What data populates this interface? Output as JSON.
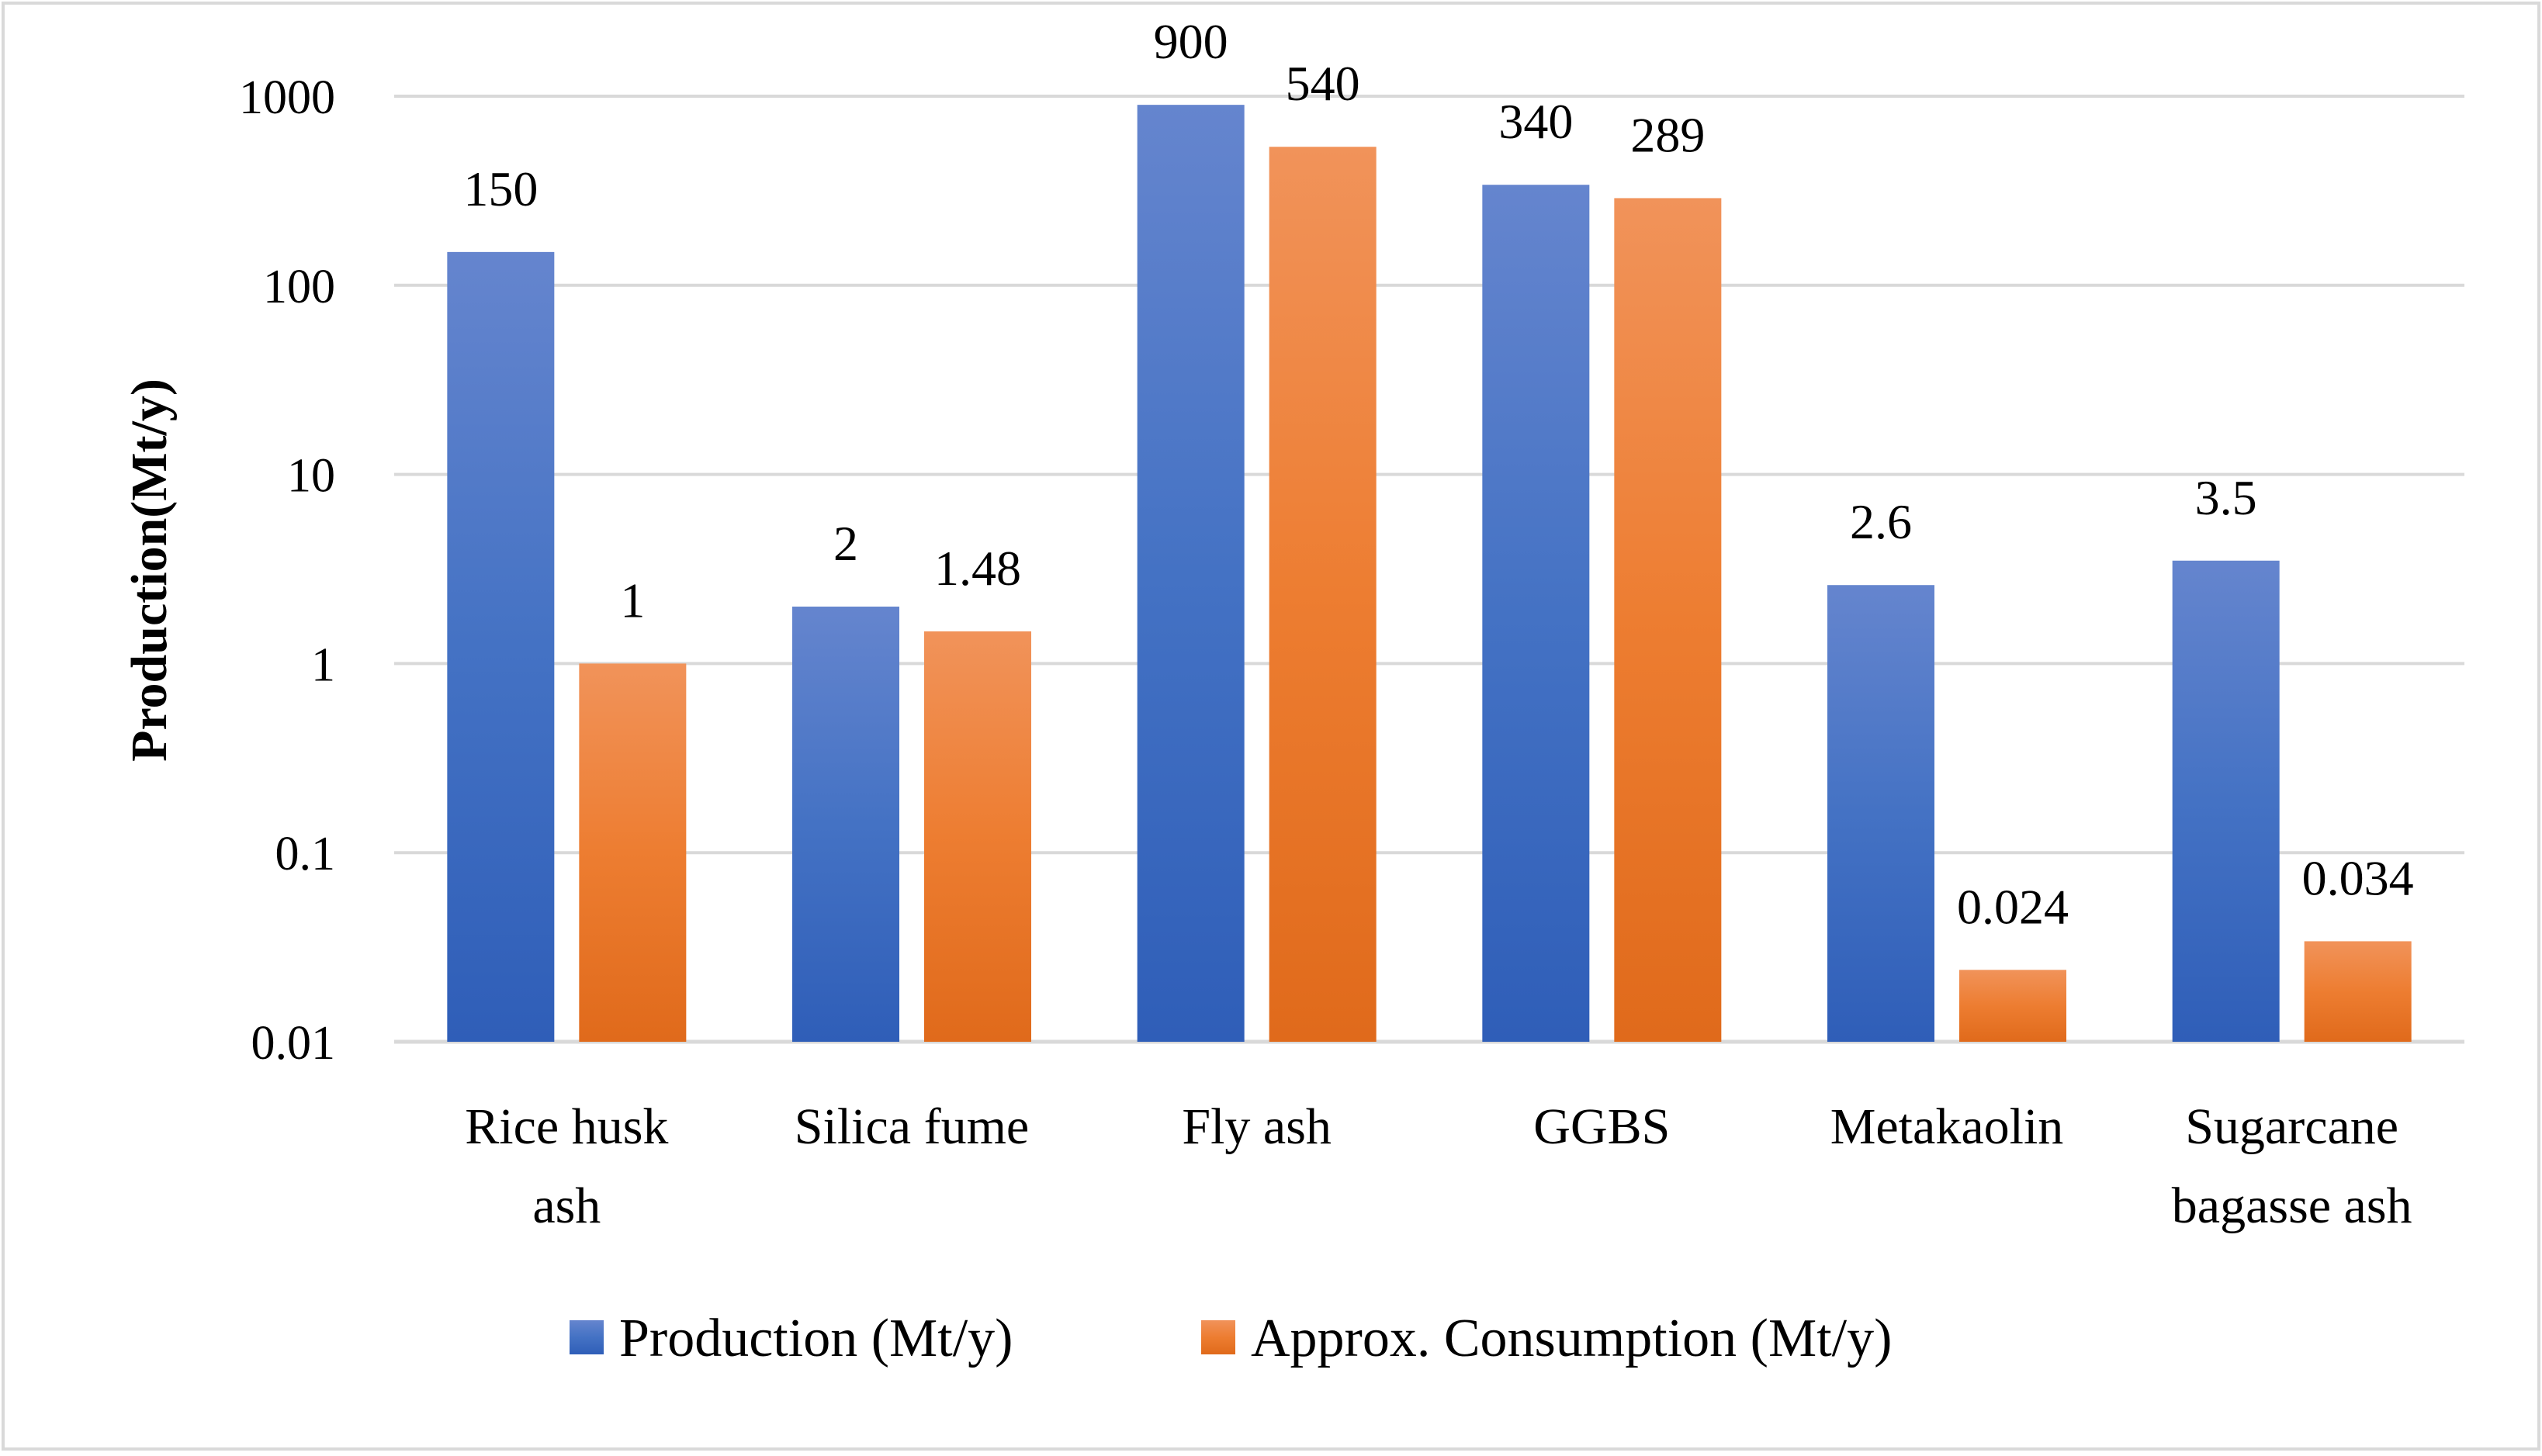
{
  "chart_data": {
    "type": "bar",
    "title": "",
    "xlabel": "",
    "ylabel": "Production(Mt/y)",
    "yscale": "log",
    "ylim": [
      0.01,
      1000
    ],
    "yticks": [
      "0.01",
      "0.1",
      "1",
      "10",
      "100",
      "1000"
    ],
    "grid": true,
    "legend_position": "bottom",
    "categories": [
      [
        "Rice husk",
        "ash"
      ],
      [
        "Silica fume"
      ],
      [
        "Fly ash"
      ],
      [
        "GGBS"
      ],
      [
        "Metakaolin"
      ],
      [
        "Sugarcane",
        "bagasse ash"
      ]
    ],
    "series": [
      {
        "name": "Production (Mt/y)",
        "color": "#4472C4",
        "values": [
          150,
          2,
          900,
          340,
          2.6,
          3.5
        ],
        "labels": [
          "150",
          "2",
          "900",
          "340",
          "2.6",
          "3.5"
        ]
      },
      {
        "name": "Approx. Consumption (Mt/y)",
        "color": "#ED7D31",
        "values": [
          1,
          1.48,
          540,
          289,
          0.024,
          0.034
        ],
        "labels": [
          "1",
          "1.48",
          "540",
          "289",
          "0.024",
          "0.034"
        ]
      }
    ]
  }
}
